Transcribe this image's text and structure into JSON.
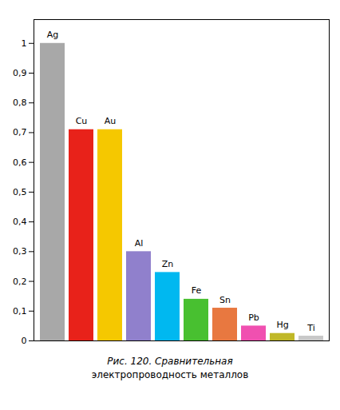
{
  "chart_data": {
    "type": "bar",
    "categories": [
      "Ag",
      "Cu",
      "Au",
      "Al",
      "Zn",
      "Fe",
      "Sn",
      "Pb",
      "Hg",
      "Ti"
    ],
    "values": [
      1.0,
      0.71,
      0.71,
      0.3,
      0.23,
      0.14,
      0.11,
      0.05,
      0.025,
      0.016
    ],
    "colors": [
      "#a8a8a8",
      "#e8221a",
      "#f5c800",
      "#9080cc",
      "#00b8f0",
      "#48c030",
      "#e87840",
      "#f050b0",
      "#c0b828",
      "#c8c8c8"
    ],
    "ylim": [
      0,
      1.08
    ],
    "yticks": [
      0,
      {
        "value": 0.1,
        "label": "0,1"
      },
      {
        "value": 0.2,
        "label": "0,2"
      },
      {
        "value": 0.3,
        "label": "0,3"
      },
      {
        "value": 0.4,
        "label": "0,4"
      },
      {
        "value": 0.5,
        "label": "0,5"
      },
      {
        "value": 0.6,
        "label": "0,6"
      },
      {
        "value": 0.7,
        "label": "0,7"
      },
      {
        "value": 0.8,
        "label": "0,8"
      },
      {
        "value": 0.9,
        "label": "0,9"
      },
      1
    ],
    "grid": false,
    "tick_labels": "y",
    "caption": [
      "Рис. 120. Сравнительная",
      "электропроводность металлов"
    ]
  }
}
